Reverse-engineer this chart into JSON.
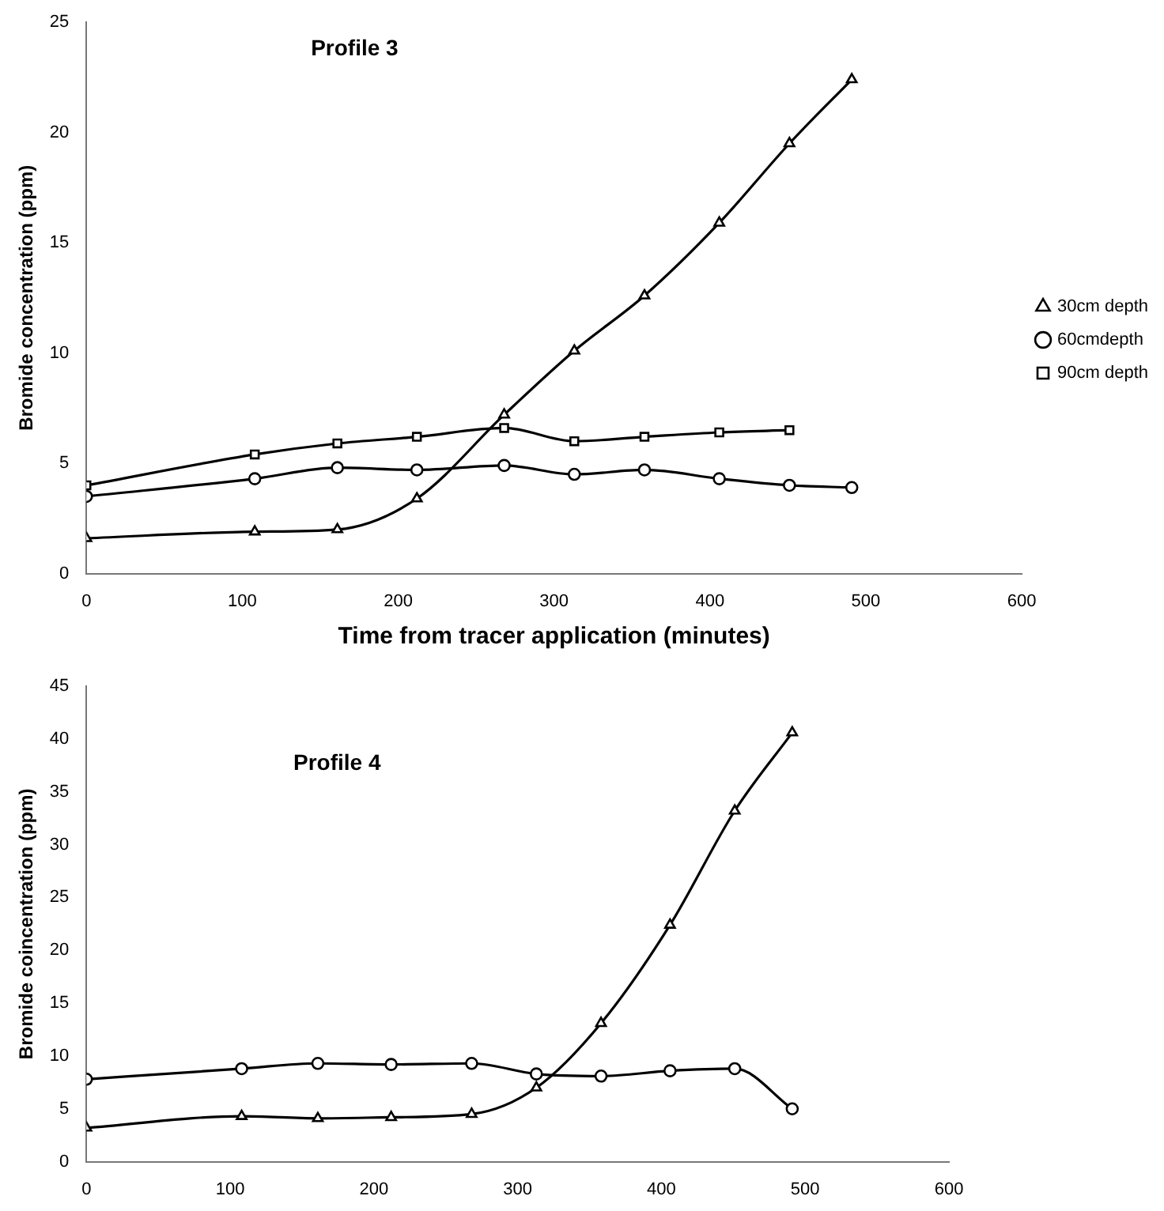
{
  "chart_data": [
    {
      "type": "line",
      "title": "Profile 3",
      "xlabel": "Time from tracer application (minutes)",
      "ylabel": "Bromide concentration (ppm)",
      "x": [
        0,
        108,
        161,
        212,
        268,
        313,
        358,
        406,
        451,
        491
      ],
      "series": [
        {
          "name": "30cm depth",
          "color": "#000000",
          "marker": "triangle",
          "values": [
            1.6,
            1.9,
            2.0,
            3.4,
            7.2,
            10.1,
            12.6,
            15.9,
            19.5,
            22.4
          ]
        },
        {
          "name": "60cmdepth",
          "color": "#000000",
          "marker": "circle",
          "values": [
            3.5,
            4.3,
            4.8,
            4.7,
            4.9,
            4.5,
            4.7,
            4.3,
            4.0,
            3.9
          ]
        },
        {
          "name": "90cm depth",
          "color": "#000000",
          "marker": "square",
          "values": [
            4.0,
            5.4,
            5.9,
            6.2,
            6.6,
            6.0,
            6.2,
            6.4,
            6.5,
            null
          ]
        }
      ],
      "xlim": [
        0,
        600
      ],
      "xticks": [
        0,
        100,
        200,
        300,
        400,
        500,
        600
      ],
      "ylim": [
        0,
        25
      ],
      "yticks": [
        0,
        5,
        10,
        15,
        20,
        25
      ],
      "grid": false,
      "legend": "right"
    },
    {
      "type": "line",
      "title": "Profile 4",
      "ylabel": "Bromide coincentration (ppm)",
      "x": [
        0,
        108,
        161,
        212,
        268,
        313,
        358,
        406,
        451,
        491
      ],
      "series": [
        {
          "color": "#000000",
          "marker": "triangle",
          "values": [
            3.2,
            4.3,
            4.1,
            4.2,
            4.5,
            7.0,
            13.1,
            22.4,
            33.2,
            40.6
          ]
        },
        {
          "color": "#000000",
          "marker": "circle",
          "values": [
            7.8,
            8.8,
            9.3,
            9.2,
            9.3,
            8.3,
            8.1,
            8.6,
            8.8,
            5.0
          ]
        }
      ],
      "xlim": [
        0,
        600
      ],
      "xticks": [
        0,
        100,
        200,
        300,
        400,
        500,
        600
      ],
      "ylim": [
        0,
        45
      ],
      "yticks": [
        0,
        5,
        10,
        15,
        20,
        25,
        30,
        35,
        40,
        45
      ],
      "grid": false
    }
  ]
}
